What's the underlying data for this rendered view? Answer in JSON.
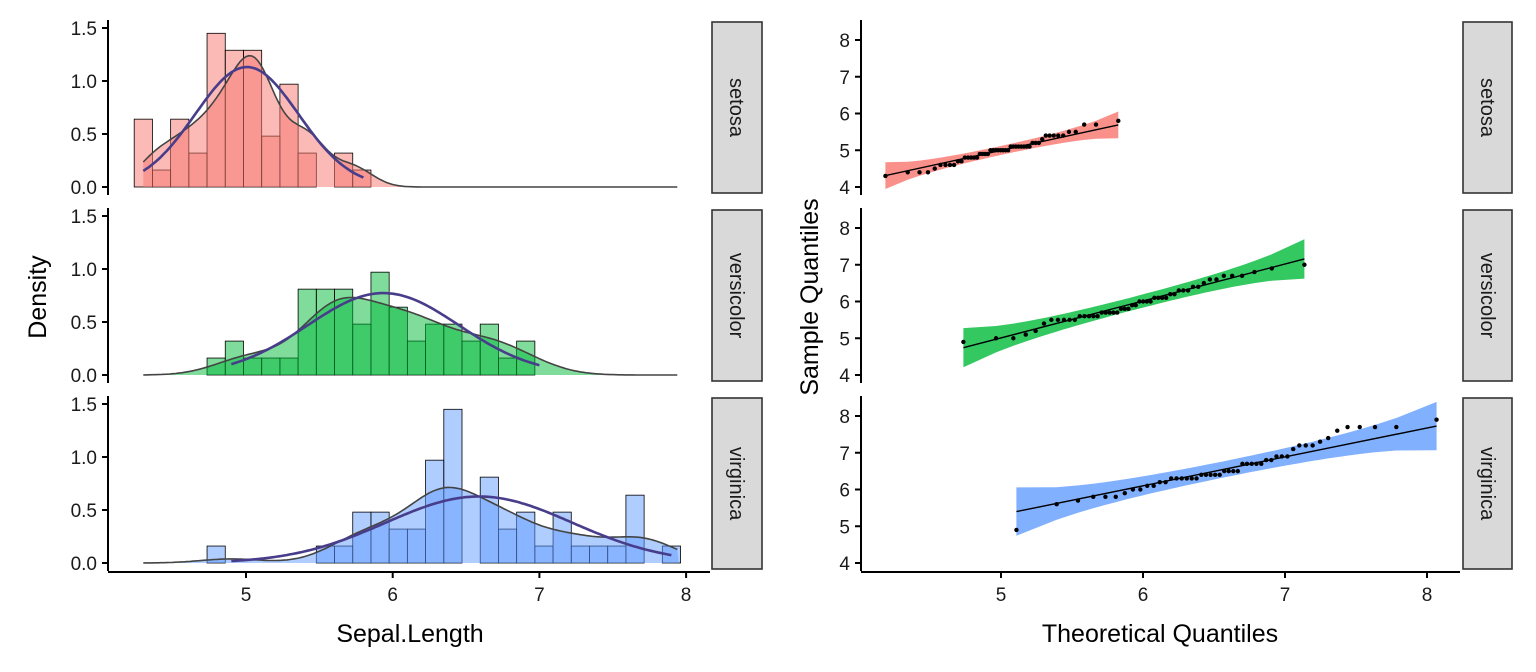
{
  "chart_data": [
    {
      "type": "bar",
      "subtype": "histogram-with-density",
      "xlabel": "Sepal.Length",
      "ylabel": "Density",
      "xticks": [
        5,
        6,
        7,
        8
      ],
      "yticks": [
        0.0,
        0.5,
        1.0,
        1.5
      ],
      "ytick_labels": [
        "0.0",
        "0.5",
        "1.0",
        "1.5"
      ],
      "xlim": [
        4.06,
        8.16
      ],
      "ylim": [
        -0.075,
        1.575
      ],
      "bin_centers_start": 4.3,
      "bin_width": 0.12414,
      "normal_curve_color": "#483D8B",
      "facets": [
        {
          "name": "setosa",
          "color": "#F8766D",
          "density": [
            0.64,
            0.16,
            0.64,
            0.32,
            1.45,
            1.29,
            1.29,
            0.48,
            0.97,
            0.32,
            0,
            0.32,
            0.16,
            0,
            0,
            0,
            0,
            0,
            0,
            0,
            0,
            0,
            0,
            0,
            0,
            0,
            0,
            0,
            0,
            0
          ],
          "normal": {
            "mean": 5.006,
            "sd": 0.3525,
            "min": 4.3,
            "max": 5.8
          }
        },
        {
          "name": "versicolor",
          "color": "#00BA38",
          "density": [
            0,
            0,
            0,
            0,
            0.16,
            0.32,
            0.16,
            0.16,
            0.16,
            0.81,
            0.81,
            0.81,
            0.48,
            0.97,
            0.64,
            0.32,
            0.48,
            0.48,
            0.32,
            0.48,
            0.16,
            0.32,
            0,
            0,
            0,
            0,
            0,
            0,
            0,
            0
          ],
          "normal": {
            "mean": 5.936,
            "sd": 0.5162,
            "min": 4.9,
            "max": 7.0
          }
        },
        {
          "name": "virginica",
          "color": "#619CFF",
          "density": [
            0,
            0,
            0,
            0,
            0.16,
            0,
            0,
            0,
            0,
            0,
            0.16,
            0.16,
            0.48,
            0.48,
            0.32,
            0.32,
            0.97,
            1.45,
            0,
            0.81,
            0.32,
            0.48,
            0.16,
            0.48,
            0.16,
            0.16,
            0.16,
            0.64,
            0,
            0.16
          ],
          "normal": {
            "mean": 6.588,
            "sd": 0.6359,
            "min": 4.9,
            "max": 7.9
          }
        }
      ]
    },
    {
      "type": "scatter",
      "subtype": "qq-plot-with-band",
      "xlabel": "Theoretical Quantiles",
      "ylabel": "Sample Quantiles",
      "xticks": [
        5,
        6,
        7,
        8
      ],
      "yticks": [
        4,
        5,
        6,
        7,
        8
      ],
      "xlim": [
        4.01,
        8.22
      ],
      "ylim": [
        3.78,
        8.54
      ],
      "facets": [
        {
          "name": "setosa",
          "color": "#F8766D",
          "values": [
            5.1,
            4.9,
            4.7,
            4.6,
            5.0,
            5.4,
            4.6,
            5.0,
            4.4,
            4.9,
            5.4,
            4.8,
            4.8,
            4.3,
            5.8,
            5.7,
            5.4,
            5.1,
            5.7,
            5.1,
            5.4,
            5.1,
            4.6,
            5.1,
            4.8,
            5.0,
            5.0,
            5.2,
            5.2,
            4.7,
            4.8,
            5.4,
            5.2,
            5.5,
            4.9,
            5.0,
            5.5,
            4.9,
            4.4,
            5.1,
            5.0,
            4.5,
            4.4,
            5.0,
            5.1,
            4.8,
            5.1,
            4.6,
            5.3,
            5.0
          ]
        },
        {
          "name": "versicolor",
          "color": "#00BA38",
          "values": [
            7.0,
            6.4,
            6.9,
            5.5,
            6.5,
            5.7,
            6.3,
            4.9,
            6.6,
            5.2,
            5.0,
            5.9,
            6.0,
            6.1,
            5.6,
            6.7,
            5.6,
            5.8,
            6.2,
            5.6,
            5.9,
            6.1,
            6.3,
            6.1,
            6.4,
            6.6,
            6.8,
            6.7,
            6.0,
            5.7,
            5.5,
            5.5,
            5.8,
            6.0,
            5.4,
            6.0,
            6.7,
            6.3,
            5.6,
            5.5,
            5.5,
            6.1,
            5.8,
            5.0,
            5.6,
            5.7,
            5.7,
            6.2,
            5.1,
            5.7
          ]
        },
        {
          "name": "virginica",
          "color": "#619CFF",
          "values": [
            6.3,
            5.8,
            7.1,
            6.3,
            6.5,
            7.6,
            4.9,
            7.3,
            6.7,
            7.2,
            6.5,
            6.4,
            6.8,
            5.7,
            5.8,
            6.4,
            6.5,
            7.7,
            7.7,
            6.0,
            6.9,
            5.6,
            7.7,
            6.3,
            6.7,
            7.2,
            6.2,
            6.1,
            6.4,
            7.2,
            7.4,
            7.9,
            6.4,
            6.3,
            6.1,
            7.7,
            6.3,
            6.4,
            6.0,
            6.9,
            6.7,
            6.9,
            5.8,
            6.8,
            6.7,
            6.7,
            6.3,
            6.5,
            6.2,
            5.9
          ]
        }
      ]
    }
  ]
}
